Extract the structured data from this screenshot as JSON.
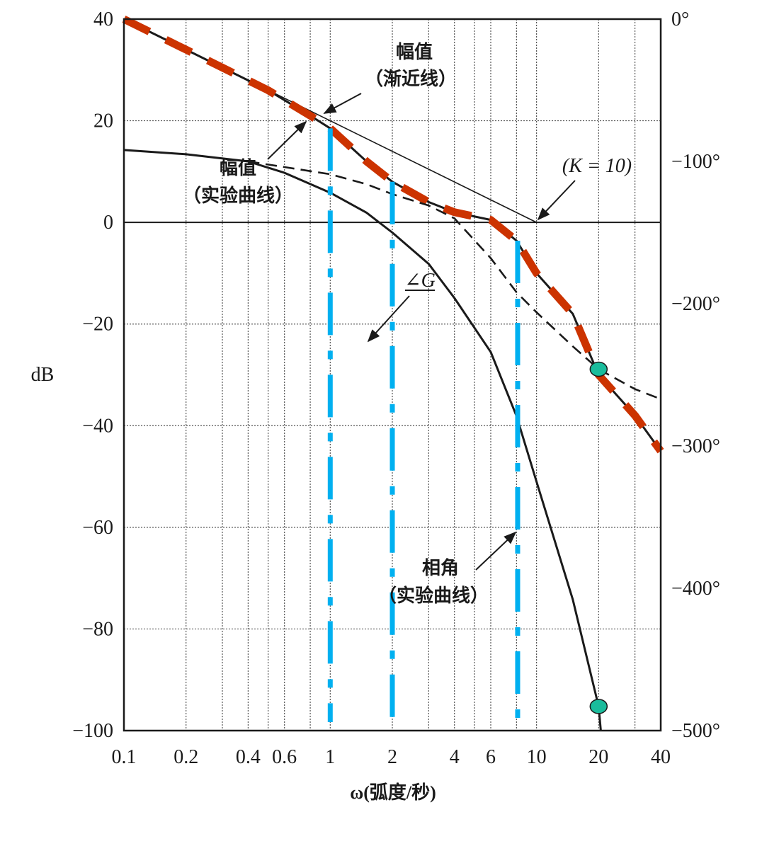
{
  "chart_data": {
    "type": "line",
    "x_scale": "log",
    "xlim": [
      0.1,
      40
    ],
    "ylim_left": [
      -100,
      40
    ],
    "ylim_right": [
      -500,
      0
    ],
    "grid": true,
    "xlabel": "ω(弧度/秒)",
    "ylabel": "dB",
    "x_ticks": [
      {
        "value": 0.1,
        "label": "0.1"
      },
      {
        "value": 0.2,
        "label": "0.2"
      },
      {
        "value": 0.4,
        "label": "0.4"
      },
      {
        "value": 0.6,
        "label": "0.6"
      },
      {
        "value": 1,
        "label": "1"
      },
      {
        "value": 2,
        "label": "2"
      },
      {
        "value": 4,
        "label": "4"
      },
      {
        "value": 6,
        "label": "6"
      },
      {
        "value": 10,
        "label": "10"
      },
      {
        "value": 20,
        "label": "20"
      },
      {
        "value": 40,
        "label": "40"
      }
    ],
    "x_grid": [
      0.1,
      0.2,
      0.3,
      0.4,
      0.5,
      0.6,
      0.8,
      1,
      2,
      3,
      4,
      5,
      6,
      8,
      10,
      20,
      30,
      40
    ],
    "y_ticks_left": [
      {
        "value": 40,
        "label": "40"
      },
      {
        "value": 20,
        "label": "20"
      },
      {
        "value": 0,
        "label": "0"
      },
      {
        "value": -20,
        "label": "−20"
      },
      {
        "value": -40,
        "label": "−40"
      },
      {
        "value": -60,
        "label": "−60"
      },
      {
        "value": -80,
        "label": "−80"
      },
      {
        "value": -100,
        "label": "−100"
      }
    ],
    "y_ticks_right": [
      {
        "value": 0,
        "label": "0°"
      },
      {
        "value": -100,
        "label": "−100°"
      },
      {
        "value": -200,
        "label": "−200°"
      },
      {
        "value": -300,
        "label": "−300°"
      },
      {
        "value": -400,
        "label": "−400°"
      },
      {
        "value": -500,
        "label": "−500°"
      }
    ],
    "series": [
      {
        "key": "mag_asymptote",
        "axis": "left",
        "style": "solid-thin",
        "color": "#1a1a1a",
        "x": [
          0.1,
          10
        ],
        "y": [
          40,
          0
        ]
      },
      {
        "key": "mag_experimental",
        "axis": "left",
        "style": "solid",
        "color": "#1a1a1a",
        "x": [
          0.1,
          0.2,
          0.5,
          0.8,
          1,
          1.5,
          2,
          3,
          4,
          6,
          8,
          10,
          15,
          20,
          30,
          40
        ],
        "y": [
          40,
          34,
          26,
          21,
          18.5,
          12,
          8,
          4,
          2,
          0.5,
          -3.6,
          -10,
          -18,
          -30,
          -38,
          -45
        ]
      },
      {
        "key": "mag_overlay",
        "axis": "left",
        "style": "thick-dashed",
        "color": "#cc3300",
        "x": [
          0.1,
          0.2,
          0.5,
          0.8,
          1,
          1.5,
          2,
          3,
          4,
          6,
          8,
          10,
          15,
          20,
          30,
          40
        ],
        "y": [
          40,
          34,
          26,
          21,
          18.5,
          12,
          8,
          4,
          2,
          0.5,
          -3.6,
          -10,
          -18,
          -30,
          -38,
          -45
        ]
      },
      {
        "key": "phase_G",
        "axis": "right",
        "style": "dashed",
        "color": "#1a1a1a",
        "x": [
          0.4,
          0.6,
          1,
          1.5,
          2,
          3,
          4,
          6,
          8,
          10,
          15,
          20,
          30,
          40
        ],
        "y": [
          -100,
          -104,
          -109,
          -116,
          -123,
          -131,
          -140,
          -168,
          -192,
          -206,
          -230,
          -246,
          -260,
          -267
        ]
      },
      {
        "key": "phase_experimental",
        "axis": "right",
        "style": "solid",
        "color": "#1a1a1a",
        "x": [
          0.1,
          0.2,
          0.4,
          0.6,
          1,
          1.5,
          2,
          3,
          4,
          6,
          8,
          10,
          15,
          20,
          20.5
        ],
        "y": [
          -92,
          -95,
          -100,
          -108,
          -122,
          -136,
          -150,
          -172,
          -196,
          -234,
          -279,
          -325,
          -408,
          -483,
          -500
        ]
      }
    ],
    "vertical_markers": {
      "color": "#00b0f0",
      "style": "dash-dot",
      "items": [
        {
          "x": 1,
          "y_top_db": 18.5
        },
        {
          "x": 2,
          "y_top_db": 8
        },
        {
          "x": 8.1,
          "y_top_db": -3.6
        }
      ]
    },
    "points": {
      "color": "#1abc9c",
      "items": [
        {
          "x": 20,
          "y_deg": -246
        },
        {
          "x": 20,
          "y_deg": -483
        }
      ]
    },
    "annotations": {
      "mag_asym": {
        "line1": "幅值",
        "line2": "（渐近线）",
        "target": {
          "x": 0.98,
          "db": 20.5
        }
      },
      "mag_exp": {
        "line1": "幅值",
        "line2": "（实验曲线）",
        "target": {
          "x": 0.85,
          "db": 20
        }
      },
      "k": {
        "text": "(K = 10)",
        "target": {
          "x": 10,
          "db": 0
        }
      },
      "angle_g": {
        "text": "∠G",
        "target": {
          "x": 1.8,
          "deg": -119
        }
      },
      "phase_exp": {
        "line1": "相角",
        "line2": "（实验曲线）",
        "target": {
          "x": 8,
          "deg": -280
        }
      }
    }
  }
}
